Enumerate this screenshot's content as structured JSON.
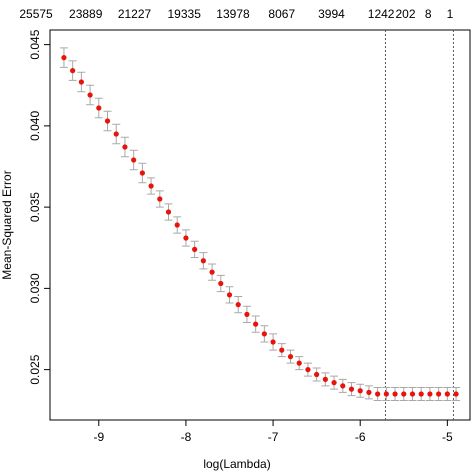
{
  "chart_data": {
    "type": "scatter",
    "x_label": "log(Lambda)",
    "y_label": "Mean-Squared Error",
    "x": [
      -9.4,
      -9.3,
      -9.2,
      -9.1,
      -9.0,
      -8.9,
      -8.8,
      -8.7,
      -8.6,
      -8.5,
      -8.4,
      -8.3,
      -8.2,
      -8.1,
      -8.0,
      -7.9,
      -7.8,
      -7.7,
      -7.6,
      -7.5,
      -7.4,
      -7.3,
      -7.2,
      -7.1,
      -7.0,
      -6.9,
      -6.8,
      -6.7,
      -6.6,
      -6.5,
      -6.4,
      -6.3,
      -6.2,
      -6.1,
      -6.0,
      -5.9,
      -5.8,
      -5.7,
      -5.6,
      -5.5,
      -5.4,
      -5.3,
      -5.2,
      -5.1,
      -5.0,
      -4.9
    ],
    "values": [
      0.0442,
      0.0434,
      0.0427,
      0.0419,
      0.0411,
      0.0403,
      0.0395,
      0.0387,
      0.0379,
      0.0371,
      0.0363,
      0.0355,
      0.0347,
      0.0339,
      0.0331,
      0.0324,
      0.0317,
      0.031,
      0.0303,
      0.0296,
      0.029,
      0.0284,
      0.0278,
      0.0272,
      0.0267,
      0.0262,
      0.0258,
      0.0254,
      0.025,
      0.0247,
      0.0244,
      0.0242,
      0.024,
      0.0238,
      0.0237,
      0.0236,
      0.0235,
      0.0235,
      0.0235,
      0.0235,
      0.0235,
      0.0235,
      0.0235,
      0.0235,
      0.0235,
      0.0235
    ],
    "errors": [
      0.0006,
      0.0006,
      0.0006,
      0.0006,
      0.0006,
      0.0006,
      0.0006,
      0.0006,
      0.0006,
      0.0006,
      0.0005,
      0.0005,
      0.0005,
      0.0005,
      0.0005,
      0.0005,
      0.0005,
      0.0005,
      0.0005,
      0.0005,
      0.0005,
      0.0005,
      0.0005,
      0.0005,
      0.0005,
      0.0004,
      0.0004,
      0.0004,
      0.0004,
      0.0004,
      0.0004,
      0.0004,
      0.0004,
      0.0004,
      0.0004,
      0.0004,
      0.0004,
      0.0004,
      0.0004,
      0.0004,
      0.0004,
      0.0004,
      0.0004,
      0.0004,
      0.0004,
      0.0004
    ],
    "color": "#e8140c",
    "error_color": "#a8a8a8",
    "xlim": [
      -9.56,
      -4.74
    ],
    "ylim": [
      0.0219,
      0.0459
    ],
    "xticks": [
      -9,
      -8,
      -7,
      -6,
      -5
    ],
    "yticks": [
      0.025,
      {
        "value": 0.03,
        "label": "0.030"
      },
      0.035,
      {
        "value": 0.04,
        "label": "0.040"
      },
      0.045
    ],
    "top_ticks": [
      {
        "value": -9.72,
        "label": "25575"
      },
      {
        "value": -9.15,
        "label": "23889"
      },
      {
        "value": -8.59,
        "label": "21227"
      },
      {
        "value": -8.02,
        "label": "19335"
      },
      {
        "value": -7.46,
        "label": "13978"
      },
      {
        "value": -6.9,
        "label": "8067"
      },
      {
        "value": -6.33,
        "label": "3994"
      },
      {
        "value": -5.76,
        "label": "1242"
      },
      {
        "value": -5.48,
        "label": "202"
      },
      {
        "value": -5.22,
        "label": "8"
      },
      {
        "value": -4.97,
        "label": "1"
      }
    ],
    "vlines": [
      -5.71,
      -4.93
    ]
  }
}
